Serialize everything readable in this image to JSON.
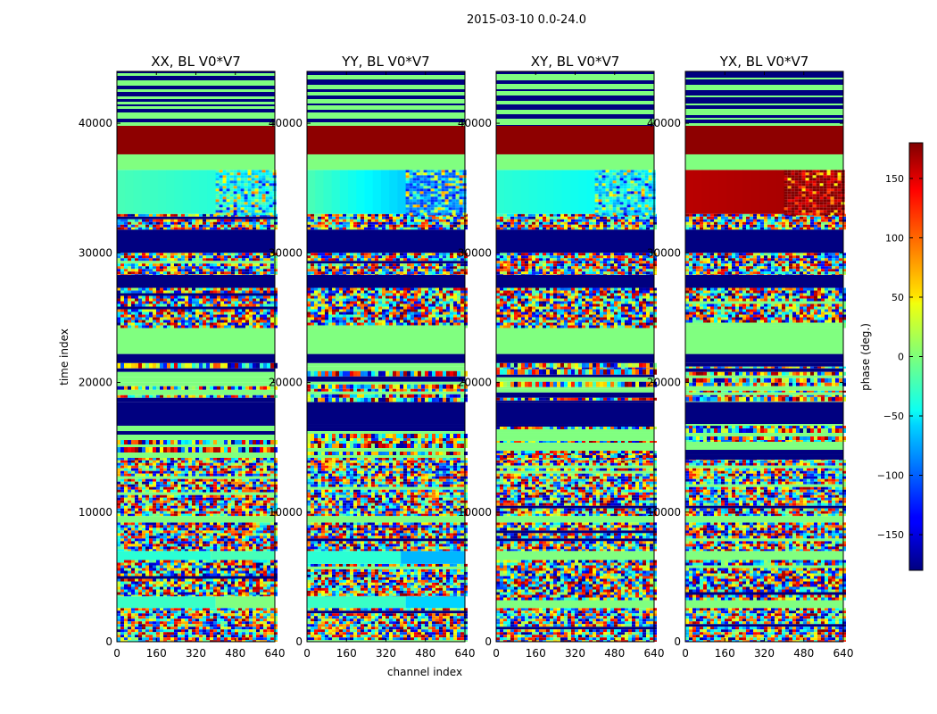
{
  "figure": {
    "suptitle": "2015-03-10 0.0-24.0"
  },
  "chart_data": {
    "type": "heatmap",
    "panels": [
      {
        "title": "XX, BL V0*V7",
        "bands": [
          {
            "y0": 0,
            "y1": 2600,
            "mode": "noise"
          },
          {
            "y0": 2600,
            "y1": 3500,
            "mode": "solid",
            "v": -25,
            "cut": 400,
            "v2": 0
          },
          {
            "y0": 3500,
            "y1": 6300,
            "mode": "noise"
          },
          {
            "y0": 6300,
            "y1": 7000,
            "mode": "solid",
            "v": -30,
            "cut": 380,
            "v2": -20
          },
          {
            "y0": 7000,
            "y1": 9200,
            "mode": "noise"
          },
          {
            "y0": 9200,
            "y1": 9700,
            "mode": "solid",
            "v": 0
          },
          {
            "y0": 9700,
            "y1": 14000,
            "mode": "noise"
          },
          {
            "y0": 14000,
            "y1": 16800,
            "mode": "mixed"
          },
          {
            "y0": 16800,
            "y1": 18500,
            "mode": "blue",
            "v": -180
          },
          {
            "y0": 18500,
            "y1": 21500,
            "mode": "mixed"
          },
          {
            "y0": 21500,
            "y1": 22200,
            "mode": "blue",
            "v": -180
          },
          {
            "y0": 22200,
            "y1": 24200,
            "mode": "solid",
            "v": 0
          },
          {
            "y0": 24200,
            "y1": 27300,
            "mode": "noise"
          },
          {
            "y0": 27300,
            "y1": 28300,
            "mode": "blue",
            "v": -180
          },
          {
            "y0": 28300,
            "y1": 30000,
            "mode": "noise"
          },
          {
            "y0": 30000,
            "y1": 31800,
            "mode": "blue",
            "v": -180
          },
          {
            "y0": 31800,
            "y1": 33000,
            "mode": "noise"
          },
          {
            "y0": 33000,
            "y1": 36400,
            "mode": "gradient",
            "v": -20,
            "v2": -40,
            "cut": 400
          },
          {
            "y0": 36400,
            "y1": 37600,
            "mode": "solid",
            "v": 0
          },
          {
            "y0": 37600,
            "y1": 39800,
            "mode": "solid",
            "v": 175
          },
          {
            "y0": 39800,
            "y1": 44000,
            "mode": "stripes"
          }
        ]
      },
      {
        "title": "YY, BL V0*V7",
        "bands": [
          {
            "y0": 0,
            "y1": 2600,
            "mode": "noise"
          },
          {
            "y0": 2600,
            "y1": 3500,
            "mode": "solid",
            "v": -25,
            "cut": 400,
            "v2": -60
          },
          {
            "y0": 3500,
            "y1": 6000,
            "mode": "noise"
          },
          {
            "y0": 6000,
            "y1": 7000,
            "mode": "solid",
            "v": -30,
            "cut": 380,
            "v2": -70
          },
          {
            "y0": 7000,
            "y1": 9200,
            "mode": "noise"
          },
          {
            "y0": 9200,
            "y1": 9700,
            "mode": "solid",
            "v": 0
          },
          {
            "y0": 9700,
            "y1": 14000,
            "mode": "noise"
          },
          {
            "y0": 14000,
            "y1": 16800,
            "mode": "mixed"
          },
          {
            "y0": 16800,
            "y1": 18500,
            "mode": "blue",
            "v": -180
          },
          {
            "y0": 18500,
            "y1": 21500,
            "mode": "mixed"
          },
          {
            "y0": 21500,
            "y1": 22200,
            "mode": "blue",
            "v": -180
          },
          {
            "y0": 22200,
            "y1": 24200,
            "mode": "solid",
            "v": 0
          },
          {
            "y0": 24200,
            "y1": 27300,
            "mode": "noise"
          },
          {
            "y0": 27300,
            "y1": 28300,
            "mode": "blue",
            "v": -180
          },
          {
            "y0": 28300,
            "y1": 30000,
            "mode": "noise"
          },
          {
            "y0": 30000,
            "y1": 31800,
            "mode": "blue",
            "v": -180
          },
          {
            "y0": 31800,
            "y1": 33000,
            "mode": "noise"
          },
          {
            "y0": 33000,
            "y1": 36400,
            "mode": "gradient",
            "v": -20,
            "v2": -95,
            "cut": 400
          },
          {
            "y0": 36400,
            "y1": 37600,
            "mode": "solid",
            "v": 0
          },
          {
            "y0": 37600,
            "y1": 39800,
            "mode": "solid",
            "v": 175
          },
          {
            "y0": 39800,
            "y1": 44000,
            "mode": "stripes"
          }
        ]
      },
      {
        "title": "XY, BL V0*V7",
        "bands": [
          {
            "y0": 0,
            "y1": 2600,
            "mode": "noise"
          },
          {
            "y0": 2600,
            "y1": 3200,
            "mode": "solid",
            "v": 0
          },
          {
            "y0": 3200,
            "y1": 6300,
            "mode": "noise"
          },
          {
            "y0": 6300,
            "y1": 7000,
            "mode": "solid",
            "v": 0
          },
          {
            "y0": 7000,
            "y1": 9200,
            "mode": "noise"
          },
          {
            "y0": 9200,
            "y1": 9700,
            "mode": "solid",
            "v": 0
          },
          {
            "y0": 9700,
            "y1": 14000,
            "mode": "noise"
          },
          {
            "y0": 14000,
            "y1": 16800,
            "mode": "mixed"
          },
          {
            "y0": 16800,
            "y1": 18500,
            "mode": "blue",
            "v": -180
          },
          {
            "y0": 18500,
            "y1": 21500,
            "mode": "mixed"
          },
          {
            "y0": 21500,
            "y1": 22200,
            "mode": "blue",
            "v": -180
          },
          {
            "y0": 22200,
            "y1": 24200,
            "mode": "solid",
            "v": 0
          },
          {
            "y0": 24200,
            "y1": 27300,
            "mode": "noise"
          },
          {
            "y0": 27300,
            "y1": 28300,
            "mode": "blue",
            "v": -180
          },
          {
            "y0": 28300,
            "y1": 30000,
            "mode": "noise"
          },
          {
            "y0": 30000,
            "y1": 31800,
            "mode": "blue",
            "v": -180
          },
          {
            "y0": 31800,
            "y1": 33000,
            "mode": "noise"
          },
          {
            "y0": 33000,
            "y1": 36400,
            "mode": "gradient",
            "v": -30,
            "v2": -50,
            "cut": 400
          },
          {
            "y0": 36400,
            "y1": 37600,
            "mode": "solid",
            "v": 0
          },
          {
            "y0": 37600,
            "y1": 39800,
            "mode": "solid",
            "v": 175
          },
          {
            "y0": 39800,
            "y1": 44000,
            "mode": "stripes"
          }
        ]
      },
      {
        "title": "YX, BL V0*V7",
        "bands": [
          {
            "y0": 0,
            "y1": 2600,
            "mode": "noise"
          },
          {
            "y0": 2600,
            "y1": 3200,
            "mode": "solid",
            "v": 0
          },
          {
            "y0": 3200,
            "y1": 6300,
            "mode": "noise"
          },
          {
            "y0": 6300,
            "y1": 7000,
            "mode": "solid",
            "v": 0
          },
          {
            "y0": 7000,
            "y1": 9200,
            "mode": "noise"
          },
          {
            "y0": 9200,
            "y1": 9700,
            "mode": "solid",
            "v": 0
          },
          {
            "y0": 9700,
            "y1": 14000,
            "mode": "noise"
          },
          {
            "y0": 14000,
            "y1": 16800,
            "mode": "mixed"
          },
          {
            "y0": 16800,
            "y1": 18500,
            "mode": "blue",
            "v": -180
          },
          {
            "y0": 18500,
            "y1": 21500,
            "mode": "mixed"
          },
          {
            "y0": 21500,
            "y1": 22200,
            "mode": "blue",
            "v": -180
          },
          {
            "y0": 22200,
            "y1": 24200,
            "mode": "solid",
            "v": 0
          },
          {
            "y0": 24200,
            "y1": 27300,
            "mode": "noise"
          },
          {
            "y0": 27300,
            "y1": 28300,
            "mode": "blue",
            "v": -180
          },
          {
            "y0": 28300,
            "y1": 30000,
            "mode": "noise"
          },
          {
            "y0": 30000,
            "y1": 31800,
            "mode": "blue",
            "v": -180
          },
          {
            "y0": 31800,
            "y1": 33000,
            "mode": "noise"
          },
          {
            "y0": 33000,
            "y1": 36400,
            "mode": "gradient",
            "v": 160,
            "v2": 170,
            "cut": 400
          },
          {
            "y0": 36400,
            "y1": 37600,
            "mode": "solid",
            "v": 0
          },
          {
            "y0": 37600,
            "y1": 39800,
            "mode": "solid",
            "v": 175
          },
          {
            "y0": 39800,
            "y1": 44000,
            "mode": "stripes"
          }
        ]
      }
    ],
    "xlabel": "channel index",
    "ylabel": "time index",
    "xlim": [
      0,
      640
    ],
    "ylim": [
      0,
      44000
    ],
    "xticks": [
      0,
      160,
      320,
      480,
      640
    ],
    "yticks": [
      0,
      10000,
      20000,
      30000,
      40000
    ],
    "colorbar": {
      "label": "phase (deg.)",
      "ticks": [
        150,
        100,
        50,
        0,
        -50,
        -100,
        -150
      ],
      "tick_labels": [
        "150",
        "100",
        "50",
        "0",
        "−50",
        "−100",
        "−150"
      ],
      "vmin": -180,
      "vmax": 180,
      "colormap": "jet"
    }
  }
}
